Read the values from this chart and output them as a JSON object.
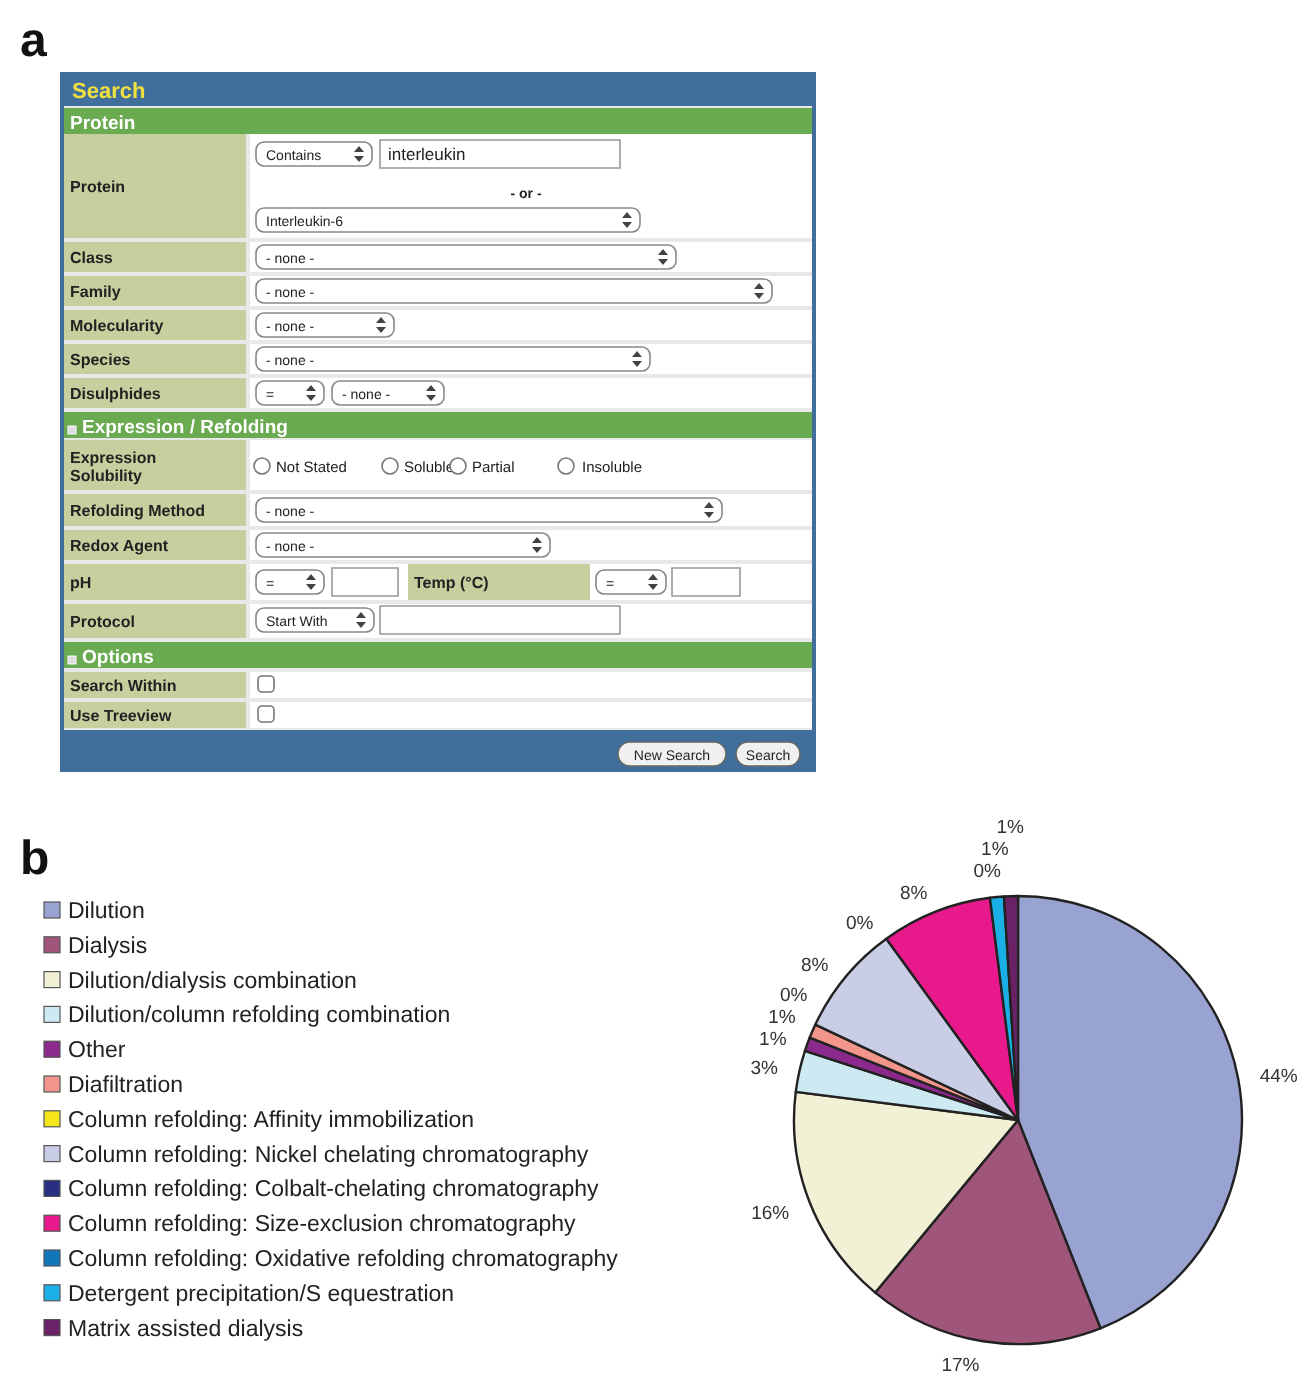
{
  "chart_data": [
    {
      "type": "other",
      "title": "Search",
      "annotations": [
        "a",
        "Protein",
        "Protein",
        "Contains",
        "interleukin",
        "- or -",
        "Interleukin-6",
        "Class",
        "- none -",
        "Family",
        "- none -",
        "Molecularity",
        "- none -",
        "Species",
        "- none -",
        "Disulphides",
        "=",
        "- none -",
        "Expression / Refolding",
        "Expression Solubility",
        "Not Stated",
        "Soluble",
        "Partial",
        "Insoluble",
        "Refolding Method",
        "- none -",
        "Redox Agent",
        "- none -",
        "pH",
        "=",
        "Temp (°C)",
        "=",
        "Protocol",
        "Start With",
        "Options",
        "Search Within",
        "Use Treeview",
        "New Search",
        "Search"
      ]
    },
    {
      "type": "pie",
      "annotations": [
        "b"
      ],
      "legend": "left",
      "categories": [
        "Dilution",
        "Dialysis",
        "Dilution/dialysis combination",
        "Dilution/column refolding combination",
        "Other",
        "Diafiltration",
        "Column refolding: Affinity immobilization",
        "Column refolding: Nickel chelating chromatography",
        "Column refolding: Colbalt-chelating chromatography",
        "Column refolding: Size-exclusion chromatography",
        "Column refolding: Oxidative refolding chromatography",
        "Detergent precipitation/S equestration",
        "Matrix assisted dialysis"
      ],
      "values": [
        44,
        17,
        16,
        3,
        1,
        1,
        0,
        8,
        0,
        8,
        0,
        1,
        1
      ],
      "value_labels": [
        "44%",
        "17%",
        "16%",
        "3%",
        "1%",
        "1%",
        "0%",
        "8%",
        "0%",
        "8%",
        "0%",
        "1%",
        "1%"
      ],
      "colors": [
        "#99a3d1",
        "#a0567a",
        "#f3f1d5",
        "#cde9f2",
        "#8b2a8c",
        "#f2958a",
        "#f5e61c",
        "#cacde6",
        "#2b2f83",
        "#e8198b",
        "#1177bb",
        "#1ab0e6",
        "#6b2166"
      ]
    }
  ]
}
